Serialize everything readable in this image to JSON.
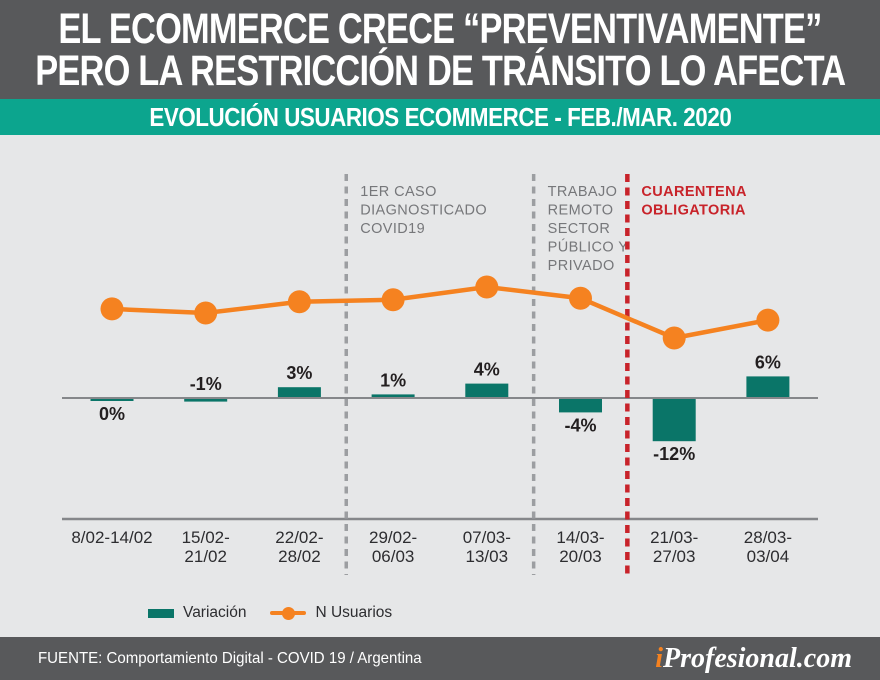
{
  "header": {
    "title_line1": "EL ECOMMERCE CRECE “PREVENTIVAMENTE”",
    "title_line2": "PERO LA RESTRICCIÓN DE TRÁNSITO LO AFECTA",
    "subtitle": "EVOLUCIÓN USUARIOS ECOMMERCE - FEB./MAR. 2020"
  },
  "legend": {
    "variation_label": "Variación",
    "users_label": "N Usuarios"
  },
  "footer": {
    "source": "FUENTE: Comportamiento Digital - COVID 19 / Argentina",
    "logo_prefix": "i",
    "logo_rest": "Profesional.com"
  },
  "colors": {
    "header_bg": "#58595B",
    "banner_teal": "#0CA58E",
    "chart_bg": "#E6E7E8",
    "bar_teal": "#0A7568",
    "line_orange": "#F58220",
    "alert_red": "#C8232A",
    "gray_dash": "#9C9EA1",
    "gray_annotation": "#76777A",
    "axis_line": "#85878A",
    "pct_label": "#231F20",
    "x_label": "#2D2D30"
  },
  "chart_data": {
    "type": "combo: bar + line",
    "title": "EVOLUCIÓN USUARIOS ECOMMERCE - FEB./MAR. 2020",
    "categories": [
      [
        "8/02-14/02"
      ],
      [
        "15/02-",
        "21/02"
      ],
      [
        "22/02-",
        "28/02"
      ],
      [
        "29/02-",
        "06/03"
      ],
      [
        "07/03-",
        "13/03"
      ],
      [
        "14/03-",
        "20/03"
      ],
      [
        "21/03-",
        "27/03"
      ],
      [
        "28/03-",
        "03/04"
      ]
    ],
    "series": [
      {
        "name": "Variación",
        "type": "bar",
        "unit": "%",
        "values": [
          0,
          -1,
          3,
          1,
          4,
          -4,
          -12,
          6
        ],
        "labels": [
          "0%",
          "-1%",
          "3%",
          "1%",
          "4%",
          "-4%",
          "-12%",
          "6%"
        ],
        "label_pos": [
          "below",
          "above",
          "above",
          "above",
          "above",
          "below",
          "below",
          "above"
        ],
        "color": "#0A7568"
      },
      {
        "name": "N Usuarios",
        "type": "line",
        "scale_note": "no numeric axis shown; values are relative index 0-100 estimated from pixel positions",
        "values_relative": [
          57,
          49,
          71,
          75,
          100,
          78,
          0,
          35
        ],
        "color": "#F58220"
      }
    ],
    "annotations": [
      {
        "lines": [
          "1ER CASO",
          "DIAGNOSTICADO",
          "COVID19"
        ],
        "after_category_index": 2,
        "color": "#76777A",
        "line_color": "#9C9EA1",
        "bold": false
      },
      {
        "lines": [
          "TRABAJO",
          "REMOTO",
          "SECTOR",
          "PÚBLICO Y",
          "PRIVADO"
        ],
        "after_category_index": 4,
        "color": "#76777A",
        "line_color": "#9C9EA1",
        "bold": false
      },
      {
        "lines": [
          "CUARENTENA",
          "OBLIGATORIA"
        ],
        "after_category_index": 5,
        "color": "#C8232A",
        "line_color": "#C8232A",
        "bold": true
      }
    ],
    "grid": false,
    "legend_position": "bottom-left"
  }
}
